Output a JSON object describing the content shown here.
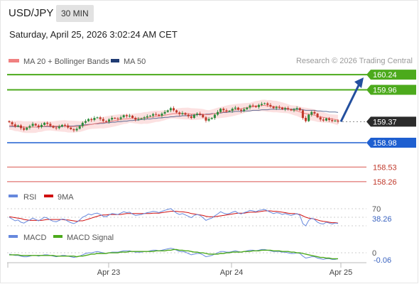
{
  "header": {
    "pair": "USD/JPY",
    "timeframe": "30 MIN",
    "datetime": "Saturday, April 25, 2026 3:02:24 AM CET",
    "credit": "Research © 2026 Trading Central"
  },
  "colors": {
    "up": "#2e8b3c",
    "down": "#c0392b",
    "ma20": "#f08080",
    "band": "#fbdada",
    "ma50": "#1f3b73",
    "green_level": "#4caa1c",
    "blue_level": "#1e5fd0",
    "red_level": "#d9534f",
    "current": "#2b2b2b",
    "rsi": "#6688dd",
    "rsi_ma": "#d01010",
    "macd": "#6688dd",
    "macd_signal": "#4caa1c",
    "arrow": "#234f9e"
  },
  "legend": {
    "ma20": "MA 20 + Bollinger Bands",
    "ma50": "MA 50",
    "rsi": "RSI",
    "rsi_ma": "9MA",
    "macd": "MACD",
    "macd_signal": "MACD Signal"
  },
  "chart_data": [
    {
      "type": "candlestick",
      "title": "USD/JPY 30 MIN",
      "x_ticks": [
        "Apr 23",
        "Apr 24",
        "Apr 25"
      ],
      "ylim": [
        158.1,
        160.4
      ],
      "levels": [
        {
          "value": "160.24",
          "kind": "resistance"
        },
        {
          "value": "159.96",
          "kind": "resistance"
        },
        {
          "value": "159.37",
          "kind": "current"
        },
        {
          "value": "158.98",
          "kind": "pivot"
        },
        {
          "value": "158.53",
          "kind": "support"
        },
        {
          "value": "158.26",
          "kind": "support"
        }
      ],
      "projection": {
        "from": 159.37,
        "to": 160.24
      },
      "closes": [
        159.36,
        159.32,
        159.28,
        159.3,
        159.25,
        159.22,
        159.26,
        159.29,
        159.33,
        159.3,
        159.27,
        159.31,
        159.35,
        159.33,
        159.29,
        159.26,
        159.25,
        159.28,
        159.31,
        159.3,
        159.26,
        159.23,
        159.21,
        159.24,
        159.29,
        159.35,
        159.38,
        159.42,
        159.4,
        159.44,
        159.45,
        159.42,
        159.38,
        159.37,
        159.41,
        159.44,
        159.43,
        159.42,
        159.45,
        159.49,
        159.47,
        159.48,
        159.44,
        159.41,
        159.42,
        159.43,
        159.45,
        159.47,
        159.48,
        159.51,
        159.5,
        159.48,
        159.52,
        159.55,
        159.58,
        159.62,
        159.58,
        159.54,
        159.51,
        159.53,
        159.5,
        159.47,
        159.44,
        159.5,
        159.52,
        159.5,
        159.45,
        159.39,
        159.42,
        159.44,
        159.5,
        159.55,
        159.61,
        159.58,
        159.56,
        159.57,
        159.61,
        159.63,
        159.59,
        159.57,
        159.6,
        159.63,
        159.67,
        159.66,
        159.64,
        159.68,
        159.7,
        159.71,
        159.68,
        159.65,
        159.62,
        159.64,
        159.63,
        159.6,
        159.62,
        159.6,
        159.58,
        159.6,
        159.62,
        159.58,
        159.44,
        159.38,
        159.5,
        159.55,
        159.52,
        159.45,
        159.41,
        159.39,
        159.43,
        159.4,
        159.38,
        159.39,
        159.37
      ],
      "ma20": [
        159.3,
        159.3,
        159.29,
        159.29,
        159.28,
        159.27,
        159.27,
        159.27,
        159.27,
        159.27,
        159.28,
        159.28,
        159.29,
        159.29,
        159.29,
        159.29,
        159.29,
        159.29,
        159.29,
        159.29,
        159.28,
        159.28,
        159.28,
        159.28,
        159.28,
        159.29,
        159.3,
        159.31,
        159.32,
        159.33,
        159.34,
        159.35,
        159.35,
        159.36,
        159.37,
        159.38,
        159.39,
        159.4,
        159.41,
        159.42,
        159.42,
        159.43,
        159.43,
        159.43,
        159.43,
        159.43,
        159.44,
        159.44,
        159.45,
        159.46,
        159.47,
        159.47,
        159.48,
        159.49,
        159.5,
        159.51,
        159.52,
        159.52,
        159.52,
        159.52,
        159.52,
        159.52,
        159.51,
        159.51,
        159.51,
        159.51,
        159.51,
        159.5,
        159.5,
        159.51,
        159.52,
        159.53,
        159.54,
        159.55,
        159.56,
        159.57,
        159.58,
        159.59,
        159.6,
        159.61,
        159.62,
        159.63,
        159.64,
        159.65,
        159.66,
        159.66,
        159.67,
        159.67,
        159.66,
        159.66,
        159.65,
        159.65,
        159.64,
        159.63,
        159.62,
        159.61,
        159.59,
        159.58,
        159.57,
        159.55,
        159.53,
        159.52,
        159.51,
        159.5,
        159.49,
        159.47,
        159.46,
        159.45,
        159.44,
        159.43,
        159.42,
        159.41,
        159.4
      ],
      "ma50": [
        159.28,
        159.28,
        159.28,
        159.28,
        159.27,
        159.27,
        159.27,
        159.27,
        159.27,
        159.27,
        159.27,
        159.28,
        159.28,
        159.28,
        159.28,
        159.28,
        159.28,
        159.28,
        159.28,
        159.29,
        159.29,
        159.29,
        159.29,
        159.3,
        159.3,
        159.31,
        159.31,
        159.32,
        159.32,
        159.33,
        159.33,
        159.34,
        159.34,
        159.35,
        159.35,
        159.36,
        159.36,
        159.37,
        159.37,
        159.38,
        159.38,
        159.39,
        159.39,
        159.4,
        159.4,
        159.41,
        159.41,
        159.42,
        159.42,
        159.43,
        159.43,
        159.44,
        159.44,
        159.45,
        159.45,
        159.46,
        159.46,
        159.47,
        159.47,
        159.48,
        159.48,
        159.48,
        159.49,
        159.49,
        159.5,
        159.5,
        159.5,
        159.51,
        159.51,
        159.52,
        159.52,
        159.53,
        159.53,
        159.54,
        159.54,
        159.55,
        159.55,
        159.56,
        159.56,
        159.56,
        159.57,
        159.57,
        159.57,
        159.58,
        159.58,
        159.58,
        159.59,
        159.59,
        159.59,
        159.6,
        159.6,
        159.6,
        159.6,
        159.6,
        159.6,
        159.6,
        159.6,
        159.6,
        159.6,
        159.6,
        159.59,
        159.58,
        159.58,
        159.58,
        159.58,
        159.57,
        159.57,
        159.56,
        159.56,
        159.55,
        159.55,
        159.55,
        159.54
      ]
    },
    {
      "type": "line",
      "title": "RSI",
      "level_labels": [
        "70",
        "38.26"
      ],
      "ylim": [
        30,
        80
      ],
      "series": [
        {
          "name": "RSI",
          "values": [
            52,
            48,
            44,
            46,
            41,
            39,
            43,
            46,
            50,
            47,
            44,
            48,
            52,
            50,
            46,
            43,
            42,
            45,
            48,
            47,
            43,
            40,
            38,
            41,
            46,
            52,
            55,
            59,
            57,
            60,
            61,
            58,
            54,
            53,
            57,
            60,
            59,
            58,
            61,
            64,
            62,
            63,
            59,
            56,
            57,
            58,
            60,
            62,
            63,
            65,
            64,
            62,
            65,
            67,
            69,
            71,
            66,
            61,
            58,
            60,
            57,
            54,
            51,
            56,
            58,
            56,
            51,
            45,
            48,
            50,
            55,
            59,
            64,
            61,
            59,
            60,
            63,
            65,
            61,
            59,
            62,
            64,
            67,
            66,
            64,
            67,
            68,
            69,
            66,
            63,
            60,
            62,
            61,
            58,
            60,
            58,
            56,
            58,
            60,
            56,
            38,
            33,
            45,
            50,
            47,
            41,
            38,
            37,
            41,
            39,
            37,
            39,
            38.26
          ]
        },
        {
          "name": "9MA",
          "values": [
            53,
            52,
            51,
            50,
            49,
            47,
            46,
            45,
            45,
            45,
            45,
            45,
            46,
            47,
            47,
            47,
            47,
            47,
            47,
            46,
            46,
            45,
            44,
            43,
            44,
            44,
            46,
            48,
            50,
            52,
            54,
            56,
            57,
            57,
            58,
            58,
            58,
            58,
            58,
            59,
            60,
            60,
            60,
            60,
            60,
            60,
            60,
            60,
            60,
            61,
            61,
            61,
            62,
            63,
            64,
            65,
            65,
            65,
            64,
            64,
            63,
            62,
            60,
            59,
            58,
            57,
            56,
            54,
            53,
            53,
            53,
            54,
            55,
            56,
            57,
            58,
            59,
            60,
            61,
            61,
            61,
            62,
            63,
            63,
            63,
            64,
            65,
            66,
            66,
            66,
            65,
            65,
            64,
            63,
            62,
            61,
            60,
            60,
            59,
            58,
            55,
            52,
            50,
            49,
            48,
            46,
            44,
            43,
            42,
            41,
            40,
            40,
            39
          ]
        }
      ]
    },
    {
      "type": "line",
      "title": "MACD",
      "level_labels": [
        "0",
        "-0.06"
      ],
      "ylim": [
        -0.12,
        0.16
      ],
      "series": [
        {
          "name": "MACD",
          "values": [
            0.01,
            0.0,
            -0.01,
            -0.01,
            -0.02,
            -0.03,
            -0.03,
            -0.02,
            -0.01,
            -0.01,
            -0.02,
            -0.01,
            0.0,
            0.0,
            -0.01,
            -0.02,
            -0.03,
            -0.02,
            -0.01,
            -0.01,
            -0.02,
            -0.03,
            -0.04,
            -0.03,
            -0.02,
            0.0,
            0.02,
            0.03,
            0.03,
            0.04,
            0.05,
            0.04,
            0.03,
            0.02,
            0.03,
            0.04,
            0.04,
            0.04,
            0.05,
            0.06,
            0.06,
            0.06,
            0.05,
            0.04,
            0.04,
            0.04,
            0.05,
            0.05,
            0.06,
            0.07,
            0.07,
            0.06,
            0.07,
            0.08,
            0.09,
            0.1,
            0.09,
            0.07,
            0.05,
            0.05,
            0.04,
            0.02,
            0.0,
            0.01,
            0.02,
            0.02,
            0.0,
            -0.03,
            -0.02,
            -0.01,
            0.01,
            0.03,
            0.05,
            0.05,
            0.04,
            0.04,
            0.05,
            0.06,
            0.05,
            0.04,
            0.05,
            0.06,
            0.07,
            0.07,
            0.06,
            0.07,
            0.08,
            0.08,
            0.07,
            0.06,
            0.05,
            0.05,
            0.05,
            0.04,
            0.04,
            0.03,
            0.02,
            0.02,
            0.03,
            0.02,
            -0.02,
            -0.05,
            -0.04,
            -0.03,
            -0.03,
            -0.05,
            -0.06,
            -0.07,
            -0.06,
            -0.06,
            -0.07,
            -0.07,
            -0.06
          ]
        },
        {
          "name": "MACD Signal",
          "values": [
            0.0,
            0.0,
            0.0,
            -0.0,
            -0.01,
            -0.01,
            -0.01,
            -0.01,
            -0.01,
            -0.01,
            -0.01,
            -0.01,
            -0.01,
            -0.01,
            -0.01,
            -0.01,
            -0.02,
            -0.02,
            -0.02,
            -0.02,
            -0.02,
            -0.02,
            -0.02,
            -0.03,
            -0.02,
            -0.02,
            -0.01,
            0.0,
            0.01,
            0.01,
            0.02,
            0.02,
            0.02,
            0.02,
            0.03,
            0.03,
            0.03,
            0.03,
            0.04,
            0.04,
            0.04,
            0.05,
            0.05,
            0.05,
            0.05,
            0.05,
            0.05,
            0.05,
            0.05,
            0.05,
            0.06,
            0.06,
            0.06,
            0.06,
            0.07,
            0.07,
            0.08,
            0.08,
            0.07,
            0.07,
            0.06,
            0.06,
            0.05,
            0.04,
            0.04,
            0.03,
            0.03,
            0.02,
            0.01,
            0.01,
            0.01,
            0.01,
            0.02,
            0.02,
            0.03,
            0.03,
            0.04,
            0.04,
            0.04,
            0.04,
            0.05,
            0.05,
            0.05,
            0.06,
            0.06,
            0.06,
            0.07,
            0.07,
            0.07,
            0.07,
            0.06,
            0.06,
            0.06,
            0.05,
            0.05,
            0.05,
            0.04,
            0.04,
            0.03,
            0.03,
            0.02,
            0.01,
            0.0,
            -0.01,
            -0.02,
            -0.03,
            -0.04,
            -0.04,
            -0.05,
            -0.05,
            -0.06,
            -0.06,
            -0.06
          ]
        }
      ]
    }
  ]
}
